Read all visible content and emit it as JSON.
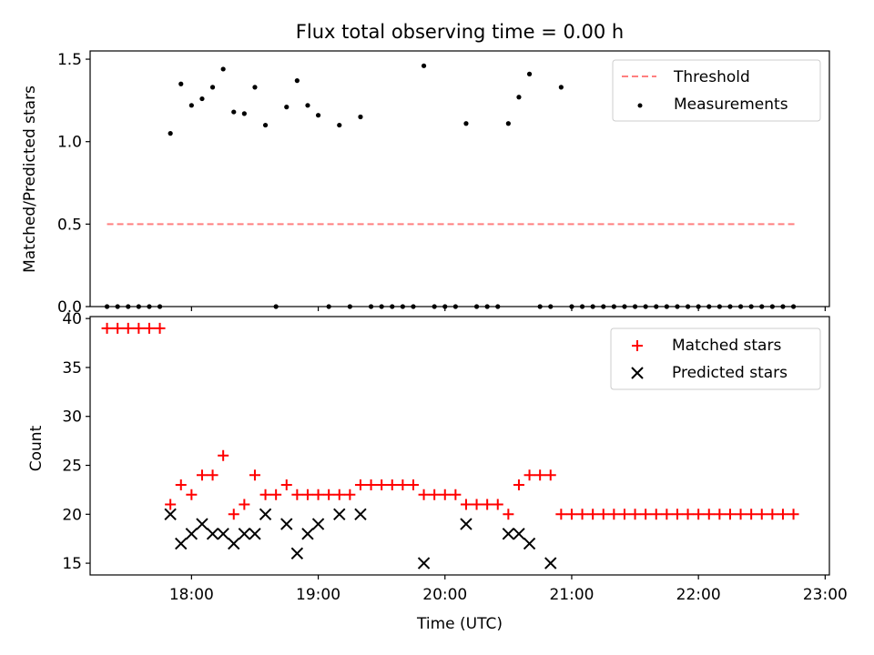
{
  "chart_data": [
    {
      "type": "scatter",
      "title": "Flux total observing time = 0.00 h",
      "xlabel": "",
      "ylabel": "Matched/Predicted stars",
      "xlim": [
        "17:12",
        "23:02"
      ],
      "ylim": [
        0,
        1.55
      ],
      "xticks": [
        "18:00",
        "19:00",
        "20:00",
        "21:00",
        "22:00",
        "23:00"
      ],
      "yticks": [
        0.0,
        0.5,
        1.0,
        1.5
      ],
      "ytick_labels": [
        "0.0",
        "0.5",
        "1.0",
        "1.5"
      ],
      "legend_position": "top-right",
      "grid": false,
      "threshold": {
        "name": "Threshold",
        "value": 0.5,
        "x_range": [
          "17:20",
          "22:47"
        ],
        "color": "#ff7f7f",
        "style": "dashed"
      },
      "series": [
        {
          "name": "Measurements",
          "color": "#000000",
          "marker": "dot",
          "x": [
            "17:20",
            "17:25",
            "17:30",
            "17:35",
            "17:40",
            "17:45",
            "17:50",
            "17:55",
            "18:00",
            "18:05",
            "18:10",
            "18:15",
            "18:20",
            "18:25",
            "18:30",
            "18:35",
            "18:40",
            "18:45",
            "18:50",
            "18:55",
            "19:00",
            "19:05",
            "19:10",
            "19:15",
            "19:20",
            "19:25",
            "19:30",
            "19:35",
            "19:40",
            "19:45",
            "19:50",
            "19:55",
            "20:00",
            "20:05",
            "20:10",
            "20:15",
            "20:20",
            "20:25",
            "20:30",
            "20:35",
            "20:40",
            "20:45",
            "20:50",
            "20:55",
            "21:00",
            "21:05",
            "21:10",
            "21:15",
            "21:20",
            "21:25",
            "21:30",
            "21:35",
            "21:40",
            "21:45",
            "21:50",
            "21:55",
            "22:00",
            "22:05",
            "22:10",
            "22:15",
            "22:20",
            "22:25",
            "22:30",
            "22:35",
            "22:40",
            "22:45"
          ],
          "y": [
            0,
            0,
            0,
            0,
            0,
            0,
            1.05,
            1.35,
            1.22,
            1.26,
            1.33,
            1.44,
            1.18,
            1.17,
            1.33,
            1.1,
            0,
            1.21,
            1.37,
            1.22,
            1.16,
            0,
            1.1,
            0,
            1.15,
            0,
            0,
            0,
            0,
            0,
            1.46,
            0,
            0,
            0,
            1.11,
            0,
            0,
            0,
            1.11,
            1.27,
            1.41,
            0,
            0,
            1.33,
            0,
            0,
            0,
            0,
            0,
            0,
            0,
            0,
            0,
            0,
            0,
            0,
            0,
            0,
            0,
            0,
            0,
            0,
            0,
            0,
            0,
            0
          ]
        }
      ]
    },
    {
      "type": "scatter",
      "title": "",
      "xlabel": "Time (UTC)",
      "ylabel": "Count",
      "xlim": [
        "17:12",
        "23:02"
      ],
      "ylim": [
        13.8,
        40.2
      ],
      "xticks": [
        "18:00",
        "19:00",
        "20:00",
        "21:00",
        "22:00",
        "23:00"
      ],
      "yticks": [
        15,
        20,
        25,
        30,
        35,
        40
      ],
      "legend_position": "top-right",
      "grid": false,
      "series": [
        {
          "name": "Matched stars",
          "color": "#ff0000",
          "marker": "plus",
          "x": [
            "17:20",
            "17:25",
            "17:30",
            "17:35",
            "17:40",
            "17:45",
            "17:50",
            "17:55",
            "18:00",
            "18:05",
            "18:10",
            "18:15",
            "18:20",
            "18:25",
            "18:30",
            "18:35",
            "18:40",
            "18:45",
            "18:50",
            "18:55",
            "19:00",
            "19:05",
            "19:10",
            "19:15",
            "19:20",
            "19:25",
            "19:30",
            "19:35",
            "19:40",
            "19:45",
            "19:50",
            "19:55",
            "20:00",
            "20:05",
            "20:10",
            "20:15",
            "20:20",
            "20:25",
            "20:30",
            "20:35",
            "20:40",
            "20:45",
            "20:50",
            "20:55",
            "21:00",
            "21:05",
            "21:10",
            "21:15",
            "21:20",
            "21:25",
            "21:30",
            "21:35",
            "21:40",
            "21:45",
            "21:50",
            "21:55",
            "22:00",
            "22:05",
            "22:10",
            "22:15",
            "22:20",
            "22:25",
            "22:30",
            "22:35",
            "22:40",
            "22:45"
          ],
          "y": [
            39,
            39,
            39,
            39,
            39,
            39,
            21,
            23,
            22,
            24,
            24,
            26,
            20,
            21,
            24,
            22,
            22,
            23,
            22,
            22,
            22,
            22,
            22,
            22,
            23,
            23,
            23,
            23,
            23,
            23,
            22,
            22,
            22,
            22,
            21,
            21,
            21,
            21,
            20,
            23,
            24,
            24,
            24,
            20,
            20,
            20,
            20,
            20,
            20,
            20,
            20,
            20,
            20,
            20,
            20,
            20,
            20,
            20,
            20,
            20,
            20,
            20,
            20,
            20,
            20,
            20
          ]
        },
        {
          "name": "Predicted stars",
          "color": "#000000",
          "marker": "x",
          "x": [
            "17:50",
            "17:55",
            "18:00",
            "18:05",
            "18:10",
            "18:15",
            "18:20",
            "18:25",
            "18:30",
            "18:35",
            "18:45",
            "18:50",
            "18:55",
            "19:00",
            "19:10",
            "19:20",
            "19:50",
            "20:10",
            "20:30",
            "20:35",
            "20:40",
            "20:50"
          ],
          "y": [
            20,
            17,
            18,
            19,
            18,
            18,
            17,
            18,
            18,
            20,
            19,
            16,
            18,
            19,
            20,
            20,
            15,
            19,
            18,
            18,
            17,
            15
          ]
        }
      ]
    }
  ]
}
